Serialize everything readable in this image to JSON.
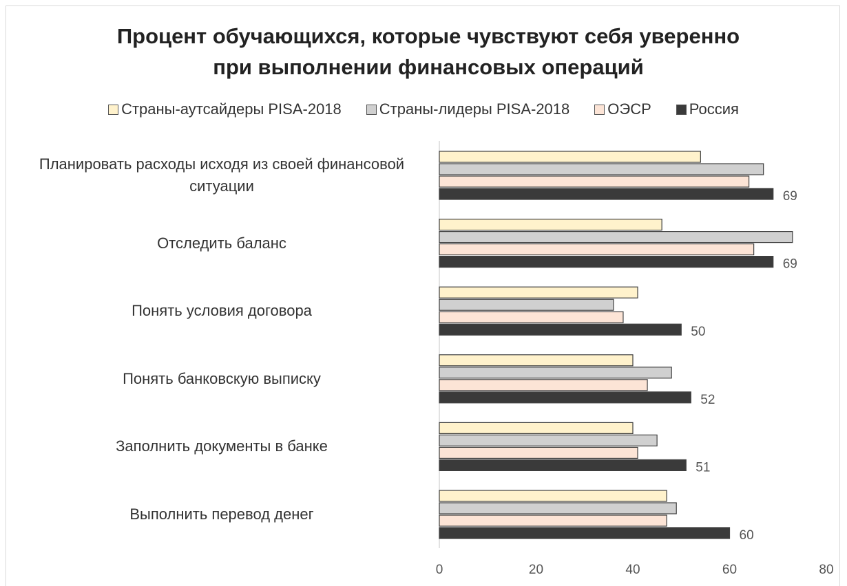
{
  "chart_data": {
    "type": "bar",
    "orientation": "horizontal",
    "title": "Процент обучающихся, которые чувствуют себя уверенно при выполнении финансовых операций",
    "categories": [
      "Планировать расходы исходя из своей финансовой ситуации",
      "Отследить баланс",
      "Понять условия договора",
      "Понять банковскую выписку",
      "Заполнить документы в банке",
      "Выполнить перевод денег"
    ],
    "series": [
      {
        "name": "Страны-аутсайдеры PISA-2018",
        "color": "#fff2cc",
        "values": [
          54,
          46,
          41,
          40,
          40,
          47
        ]
      },
      {
        "name": "Страны-лидеры PISA-2018",
        "color": "#d0d0d0",
        "values": [
          67,
          73,
          36,
          48,
          45,
          49
        ]
      },
      {
        "name": "ОЭСР",
        "color": "#fce4d6",
        "values": [
          64,
          65,
          38,
          43,
          41,
          47
        ]
      },
      {
        "name": "Россия",
        "color": "#3a3a3a",
        "values": [
          69,
          69,
          50,
          52,
          51,
          60
        ],
        "data_labels": true
      }
    ],
    "xlim": [
      0,
      80
    ],
    "xticks": [
      0,
      20,
      40,
      60,
      80
    ],
    "legend": "top"
  }
}
